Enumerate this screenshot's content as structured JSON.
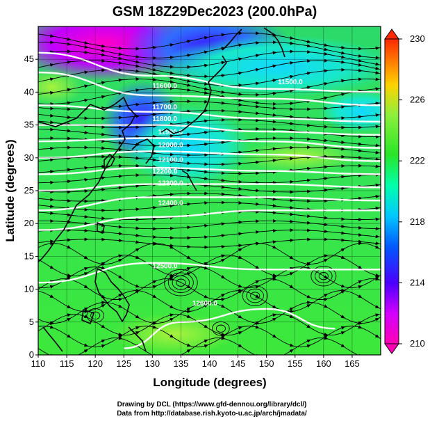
{
  "title": "GSM 18Z29Dec2023 (200.0hPa)",
  "xlabel": "Longitude (degrees)",
  "ylabel": "Latitude  (degrees)",
  "x_ticks": [
    "110",
    "115",
    "120",
    "125",
    "130",
    "135",
    "140",
    "145",
    "150",
    "155",
    "160",
    "165"
  ],
  "y_ticks": [
    "0",
    "5",
    "10",
    "15",
    "20",
    "25",
    "30",
    "35",
    "40",
    "45"
  ],
  "colorbar": {
    "min": 210,
    "max": 230,
    "ticks": [
      "210",
      "214",
      "218",
      "222",
      "226",
      "230"
    ],
    "colors": [
      "#ff00b4",
      "#d200ff",
      "#4b00ff",
      "#005aff",
      "#00c8ff",
      "#00ffaa",
      "#28e628",
      "#8cf03c",
      "#ffd200",
      "#ff7800",
      "#ff2800"
    ]
  },
  "contour_labels": [
    "11600.0",
    "11500.0",
    "11700.0",
    "11800.0",
    "11900.0",
    "12000.0",
    "12100.0",
    "12200.0",
    "12300.0",
    "12400.0",
    "12500.0",
    "12600.0"
  ],
  "credits": {
    "line1": "Drawing by DCL (https://www.gfd-dennou.org/library/dcl/)",
    "line2": "Data from http://database.rish.kyoto-u.ac.jp/arch/jmadata/"
  },
  "chart_data": {
    "type": "heatmap",
    "title": "GSM 18Z29Dec2023 (200.0hPa)",
    "xlabel": "Longitude (degrees)",
    "ylabel": "Latitude  (degrees)",
    "xlim": [
      110,
      170
    ],
    "ylim": [
      0,
      50
    ],
    "color_variable_range": [
      210,
      230
    ],
    "overlays": [
      "geopotential height contours (white)",
      "wind streamlines with arrows (black)",
      "coastlines (black)"
    ],
    "contours": [
      {
        "level": 11500,
        "lat_at_lon": [
          [
            110,
            46
          ],
          [
            130,
            42.5
          ],
          [
            150,
            40.5
          ],
          [
            170,
            40
          ]
        ]
      },
      {
        "level": 11600,
        "lat_at_lon": [
          [
            110,
            43
          ],
          [
            130,
            39.5
          ],
          [
            150,
            39
          ],
          [
            170,
            38
          ]
        ]
      },
      {
        "level": 11700,
        "lat_at_lon": [
          [
            110,
            38
          ],
          [
            130,
            37
          ],
          [
            150,
            36
          ],
          [
            170,
            35.5
          ]
        ]
      },
      {
        "level": 11800,
        "lat_at_lon": [
          [
            110,
            35
          ],
          [
            130,
            35
          ],
          [
            150,
            34
          ],
          [
            170,
            33.5
          ]
        ]
      },
      {
        "level": 11900,
        "lat_at_lon": [
          [
            110,
            32.5
          ],
          [
            130,
            33
          ],
          [
            150,
            32.5
          ],
          [
            170,
            31.5
          ]
        ]
      },
      {
        "level": 12000,
        "lat_at_lon": [
          [
            110,
            30
          ],
          [
            130,
            31
          ],
          [
            150,
            30.5
          ],
          [
            170,
            29.5
          ]
        ]
      },
      {
        "level": 12100,
        "lat_at_lon": [
          [
            110,
            27.5
          ],
          [
            130,
            28.5
          ],
          [
            150,
            28
          ],
          [
            170,
            27.5
          ]
        ]
      },
      {
        "level": 12200,
        "lat_at_lon": [
          [
            110,
            25
          ],
          [
            130,
            26
          ],
          [
            150,
            26
          ],
          [
            170,
            25.5
          ]
        ]
      },
      {
        "level": 12300,
        "lat_at_lon": [
          [
            110,
            22
          ],
          [
            130,
            24
          ],
          [
            150,
            24
          ],
          [
            170,
            23.5
          ]
        ]
      },
      {
        "level": 12400,
        "lat_at_lon": [
          [
            110,
            19
          ],
          [
            130,
            21
          ],
          [
            150,
            22
          ],
          [
            170,
            22
          ]
        ]
      },
      {
        "level": 12500,
        "lat_at_lon": [
          [
            110,
            11
          ],
          [
            130,
            14
          ],
          [
            150,
            13
          ],
          [
            170,
            13
          ]
        ]
      },
      {
        "level": 12600,
        "lat_at_lon": [
          [
            125,
            1
          ],
          [
            135,
            5
          ],
          [
            150,
            7
          ],
          [
            162,
            4
          ]
        ]
      }
    ]
  }
}
